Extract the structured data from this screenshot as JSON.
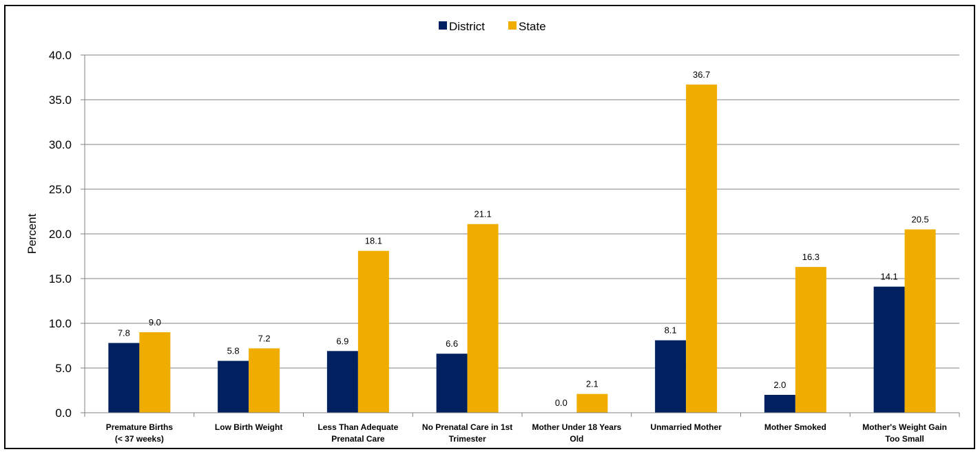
{
  "chart_data": {
    "type": "bar",
    "ylabel": "Percent",
    "xlabel": "",
    "ylim": [
      0,
      40
    ],
    "yticks": [
      "0.0",
      "5.0",
      "10.0",
      "15.0",
      "20.0",
      "25.0",
      "30.0",
      "35.0",
      "40.0"
    ],
    "grid": true,
    "legend_position": "top-center",
    "categories": [
      [
        "Premature Births",
        "(< 37 weeks)"
      ],
      [
        "Low Birth Weight"
      ],
      [
        "Less Than Adequate",
        "Prenatal Care"
      ],
      [
        "No Prenatal Care in 1st",
        "Trimester"
      ],
      [
        "Mother Under 18 Years",
        "Old"
      ],
      [
        "Unmarried Mother"
      ],
      [
        "Mother Smoked"
      ],
      [
        "Mother's Weight Gain",
        "Too Small"
      ]
    ],
    "series": [
      {
        "name": "District",
        "color": "#002060",
        "values": [
          7.8,
          5.8,
          6.9,
          6.6,
          0.0,
          8.1,
          2.0,
          14.1
        ],
        "labels": [
          "7.8",
          "5.8",
          "6.9",
          "6.6",
          "0.0",
          "8.1",
          "2.0",
          "14.1"
        ]
      },
      {
        "name": "State",
        "color": "#F0AD00",
        "values": [
          9.0,
          7.2,
          18.1,
          21.1,
          2.1,
          36.7,
          16.3,
          20.5
        ],
        "labels": [
          "9.0",
          "7.2",
          "18.1",
          "21.1",
          "2.1",
          "36.7",
          "16.3",
          "20.5"
        ]
      }
    ]
  }
}
